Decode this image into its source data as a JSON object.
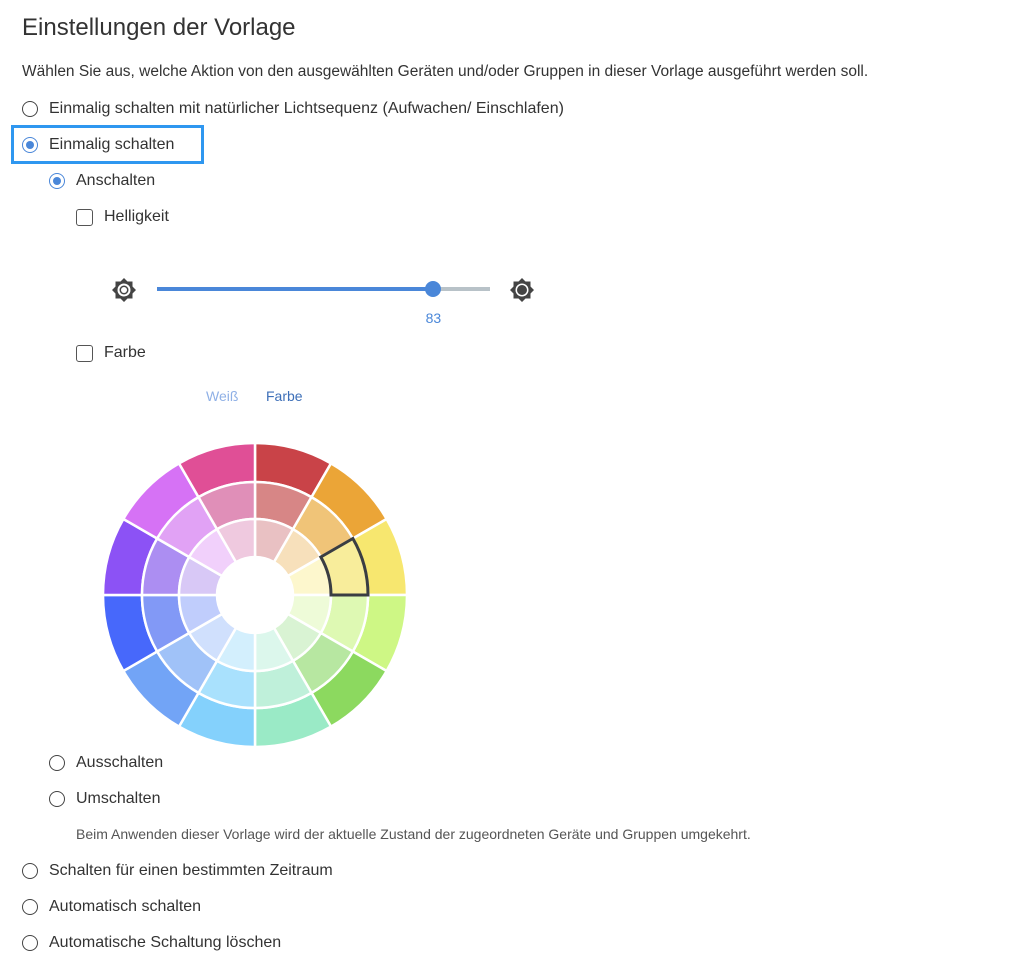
{
  "title": "Einstellungen der Vorlage",
  "description": "Wählen Sie aus, welche Aktion von den ausgewählten Geräten und/oder Gruppen in dieser Vorlage ausgeführt werden soll.",
  "options": [
    {
      "label": "Einmalig schalten mit natürlicher Lichtsequenz (Aufwachen/ Einschlafen)",
      "selected": false
    },
    {
      "label": "Einmalig schalten",
      "selected": true
    },
    {
      "label": "Schalten für einen bestimmten Zeitraum",
      "selected": false
    },
    {
      "label": "Automatisch schalten",
      "selected": false
    },
    {
      "label": "Automatische Schaltung löschen",
      "selected": false
    }
  ],
  "sub_options": [
    {
      "label": "Anschalten",
      "selected": true
    },
    {
      "label": "Ausschalten",
      "selected": false
    },
    {
      "label": "Umschalten",
      "selected": false
    }
  ],
  "toggle_hint": "Beim Anwenden dieser Vorlage wird der aktuelle Zustand der zugeordneten Geräte und Gruppen umgekehrt.",
  "brightness": {
    "label": "Helligkeit",
    "checked": false,
    "value": 83,
    "value_label": "83",
    "min_icon": "brightness-low-icon",
    "max_icon": "brightness-high-icon"
  },
  "color": {
    "label": "Farbe",
    "checked": false,
    "tabs": [
      "Weiß",
      "Farbe"
    ],
    "active_tab": "Farbe",
    "wheel": {
      "outer": [
        "#c94348",
        "#eba537",
        "#f7e76f",
        "#cef785",
        "#8cd95f",
        "#9aeac6",
        "#84d1fc",
        "#72a4f6",
        "#4768fb",
        "#8c52f5",
        "#d672f5",
        "#e04f96"
      ],
      "middle": [
        "#d78686",
        "#f0c478",
        "#f8ed9b",
        "#def9b3",
        "#b7e7a1",
        "#bff0da",
        "#a9e1fd",
        "#a0c2f8",
        "#8299f6",
        "#ac8ef2",
        "#e1a2f5",
        "#e08fb8"
      ],
      "inner": [
        "#e9c1c3",
        "#f7e0bb",
        "#fdf7cd",
        "#eefbd8",
        "#d9f3d3",
        "#dcf7ec",
        "#d3effd",
        "#d0e0fd",
        "#c0cdfc",
        "#d8c8f6",
        "#f1d0fb",
        "#efc9df"
      ],
      "selected": {
        "ring": "middle",
        "index": 2
      }
    }
  },
  "accent": "#4a87d9"
}
